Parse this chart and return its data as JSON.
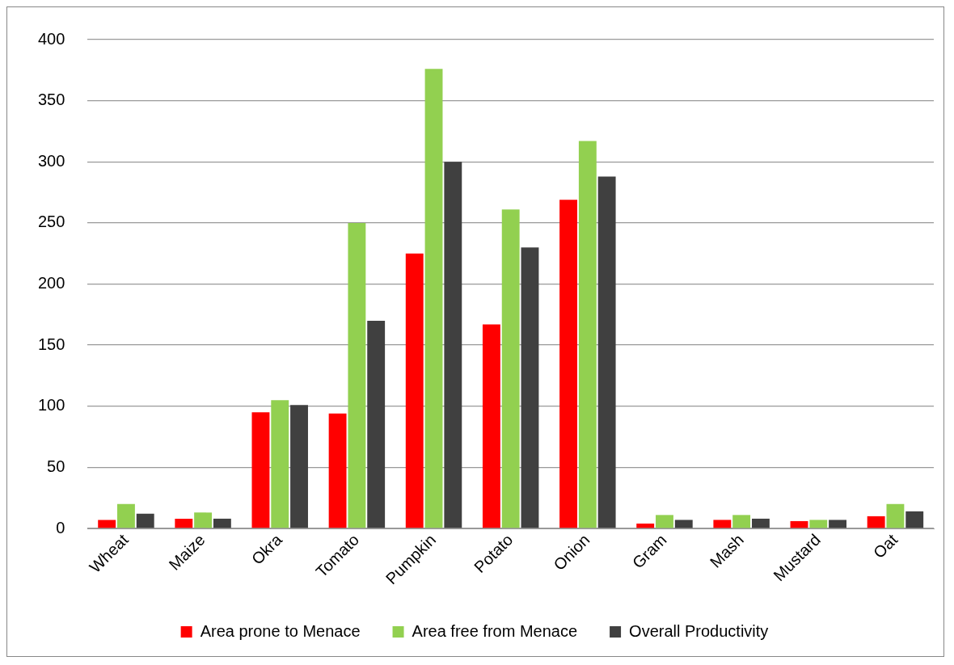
{
  "chart_data": {
    "type": "bar",
    "categories": [
      "Wheat",
      "Maize",
      "Okra",
      "Tomato",
      "Pumpkin",
      "Potato",
      "Onion",
      "Gram",
      "Mash",
      "Mustard",
      "Oat"
    ],
    "series": [
      {
        "name": "Area prone to Menace",
        "color": "#ff0000",
        "values": [
          7,
          8,
          95,
          94,
          225,
          167,
          269,
          4,
          7,
          6,
          10
        ]
      },
      {
        "name": "Area free from Menace",
        "color": "#92d050",
        "values": [
          20,
          13,
          105,
          250,
          376,
          261,
          317,
          11,
          11,
          7,
          20
        ]
      },
      {
        "name": "Overall Productivity",
        "color": "#404040",
        "values": [
          12,
          8,
          101,
          170,
          300,
          230,
          288,
          7,
          8,
          7,
          14
        ]
      }
    ],
    "ylim": [
      0,
      400
    ],
    "yticks": [
      0,
      50,
      100,
      150,
      200,
      250,
      300,
      350,
      400
    ],
    "grid": "y",
    "legend": "bottom"
  }
}
